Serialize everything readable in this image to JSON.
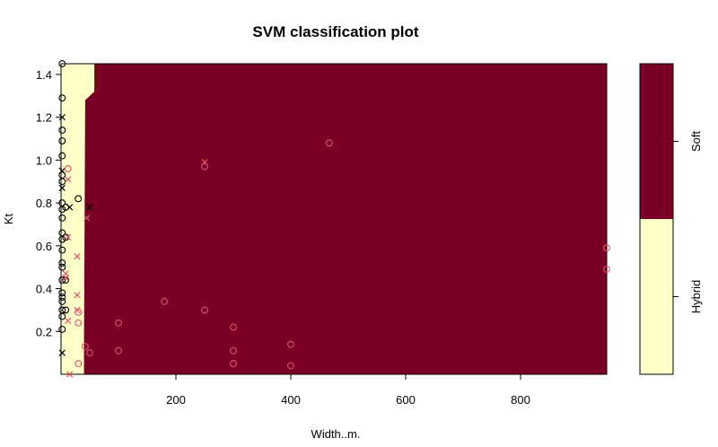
{
  "chart_data": {
    "type": "scatter",
    "title": "SVM classification plot",
    "xlabel": "Width..m.",
    "ylabel": "Kt",
    "xlim": [
      0,
      950
    ],
    "ylim": [
      0,
      1.45
    ],
    "x_ticks": [
      200,
      400,
      600,
      800
    ],
    "y_ticks": [
      0.2,
      0.4,
      0.6,
      0.8,
      1.0,
      1.2,
      1.4
    ],
    "y_tick_labels": [
      "0.2",
      "0.4",
      "0.6",
      "0.8",
      "1.0",
      "1.2",
      "1.4"
    ],
    "classes": [
      {
        "name": "Soft",
        "color": "#7a0026"
      },
      {
        "name": "Hybrid",
        "color": "#ffffc8"
      }
    ],
    "decision_regions": [
      {
        "class": "Hybrid",
        "polygon": [
          [
            0,
            0
          ],
          [
            40,
            0
          ],
          [
            40,
            0.17
          ],
          [
            42,
            1.28
          ],
          [
            58,
            1.32
          ],
          [
            58,
            1.45
          ],
          [
            0,
            1.45
          ]
        ]
      }
    ],
    "point_colors": {
      "black": "#000000",
      "pink": "#df536b"
    },
    "points": [
      {
        "x": 2,
        "y": 1.45,
        "m": "o",
        "c": "black"
      },
      {
        "x": 2,
        "y": 1.29,
        "m": "o",
        "c": "black"
      },
      {
        "x": 2,
        "y": 1.2,
        "m": "x",
        "c": "black"
      },
      {
        "x": 2,
        "y": 1.14,
        "m": "o",
        "c": "black"
      },
      {
        "x": 2,
        "y": 1.09,
        "m": "o",
        "c": "black"
      },
      {
        "x": 2,
        "y": 1.02,
        "m": "o",
        "c": "black"
      },
      {
        "x": 2,
        "y": 0.95,
        "m": "x",
        "c": "black"
      },
      {
        "x": 2,
        "y": 0.93,
        "m": "o",
        "c": "black"
      },
      {
        "x": 2,
        "y": 0.9,
        "m": "o",
        "c": "black"
      },
      {
        "x": 2,
        "y": 0.87,
        "m": "x",
        "c": "black"
      },
      {
        "x": 2,
        "y": 0.8,
        "m": "o",
        "c": "black"
      },
      {
        "x": 2,
        "y": 0.77,
        "m": "o",
        "c": "black"
      },
      {
        "x": 2,
        "y": 0.73,
        "m": "o",
        "c": "black"
      },
      {
        "x": 2,
        "y": 0.66,
        "m": "o",
        "c": "black"
      },
      {
        "x": 2,
        "y": 0.63,
        "m": "o",
        "c": "black"
      },
      {
        "x": 2,
        "y": 0.58,
        "m": "o",
        "c": "black"
      },
      {
        "x": 2,
        "y": 0.52,
        "m": "o",
        "c": "black"
      },
      {
        "x": 2,
        "y": 0.5,
        "m": "o",
        "c": "black"
      },
      {
        "x": 2,
        "y": 0.44,
        "m": "o",
        "c": "black"
      },
      {
        "x": 2,
        "y": 0.38,
        "m": "o",
        "c": "black"
      },
      {
        "x": 2,
        "y": 0.36,
        "m": "o",
        "c": "black"
      },
      {
        "x": 2,
        "y": 0.34,
        "m": "o",
        "c": "black"
      },
      {
        "x": 2,
        "y": 0.3,
        "m": "o",
        "c": "black"
      },
      {
        "x": 2,
        "y": 0.27,
        "m": "o",
        "c": "black"
      },
      {
        "x": 2,
        "y": 0.21,
        "m": "o",
        "c": "black"
      },
      {
        "x": 2,
        "y": 0.1,
        "m": "x",
        "c": "black"
      },
      {
        "x": 8,
        "y": 0.78,
        "m": "o",
        "c": "black"
      },
      {
        "x": 8,
        "y": 0.64,
        "m": "o",
        "c": "black"
      },
      {
        "x": 8,
        "y": 0.44,
        "m": "o",
        "c": "black"
      },
      {
        "x": 8,
        "y": 0.3,
        "m": "o",
        "c": "black"
      },
      {
        "x": 15,
        "y": 0.78,
        "m": "x",
        "c": "black"
      },
      {
        "x": 30,
        "y": 0.82,
        "m": "o",
        "c": "black"
      },
      {
        "x": 50,
        "y": 0.78,
        "m": "x",
        "c": "black"
      },
      {
        "x": 12,
        "y": 0.96,
        "m": "o",
        "c": "pink"
      },
      {
        "x": 12,
        "y": 0.91,
        "m": "x",
        "c": "pink"
      },
      {
        "x": 12,
        "y": 0.64,
        "m": "x",
        "c": "pink"
      },
      {
        "x": 8,
        "y": 0.47,
        "m": "x",
        "c": "pink"
      },
      {
        "x": 8,
        "y": 0.45,
        "m": "x",
        "c": "pink"
      },
      {
        "x": 12,
        "y": 0.25,
        "m": "x",
        "c": "pink"
      },
      {
        "x": 15,
        "y": 0.0,
        "m": "x",
        "c": "pink"
      },
      {
        "x": 28,
        "y": 0.55,
        "m": "x",
        "c": "pink"
      },
      {
        "x": 28,
        "y": 0.37,
        "m": "x",
        "c": "pink"
      },
      {
        "x": 28,
        "y": 0.3,
        "m": "x",
        "c": "pink"
      },
      {
        "x": 30,
        "y": 0.29,
        "m": "o",
        "c": "pink"
      },
      {
        "x": 30,
        "y": 0.24,
        "m": "o",
        "c": "pink"
      },
      {
        "x": 30,
        "y": 0.05,
        "m": "o",
        "c": "pink"
      },
      {
        "x": 45,
        "y": 0.73,
        "m": "x",
        "c": "pink"
      },
      {
        "x": 42,
        "y": 0.13,
        "m": "o",
        "c": "pink"
      },
      {
        "x": 50,
        "y": 0.1,
        "m": "o",
        "c": "pink"
      },
      {
        "x": 100,
        "y": 0.24,
        "m": "o",
        "c": "pink"
      },
      {
        "x": 100,
        "y": 0.11,
        "m": "o",
        "c": "pink"
      },
      {
        "x": 180,
        "y": 0.34,
        "m": "o",
        "c": "pink"
      },
      {
        "x": 250,
        "y": 0.99,
        "m": "x",
        "c": "pink"
      },
      {
        "x": 250,
        "y": 0.97,
        "m": "o",
        "c": "pink"
      },
      {
        "x": 250,
        "y": 0.3,
        "m": "o",
        "c": "pink"
      },
      {
        "x": 300,
        "y": 0.22,
        "m": "o",
        "c": "pink"
      },
      {
        "x": 300,
        "y": 0.11,
        "m": "o",
        "c": "pink"
      },
      {
        "x": 300,
        "y": 0.05,
        "m": "o",
        "c": "pink"
      },
      {
        "x": 400,
        "y": 0.14,
        "m": "o",
        "c": "pink"
      },
      {
        "x": 400,
        "y": 0.04,
        "m": "o",
        "c": "pink"
      },
      {
        "x": 467,
        "y": 1.08,
        "m": "o",
        "c": "pink"
      },
      {
        "x": 950,
        "y": 0.59,
        "m": "o",
        "c": "pink"
      },
      {
        "x": 950,
        "y": 0.49,
        "m": "o",
        "c": "pink"
      }
    ]
  }
}
